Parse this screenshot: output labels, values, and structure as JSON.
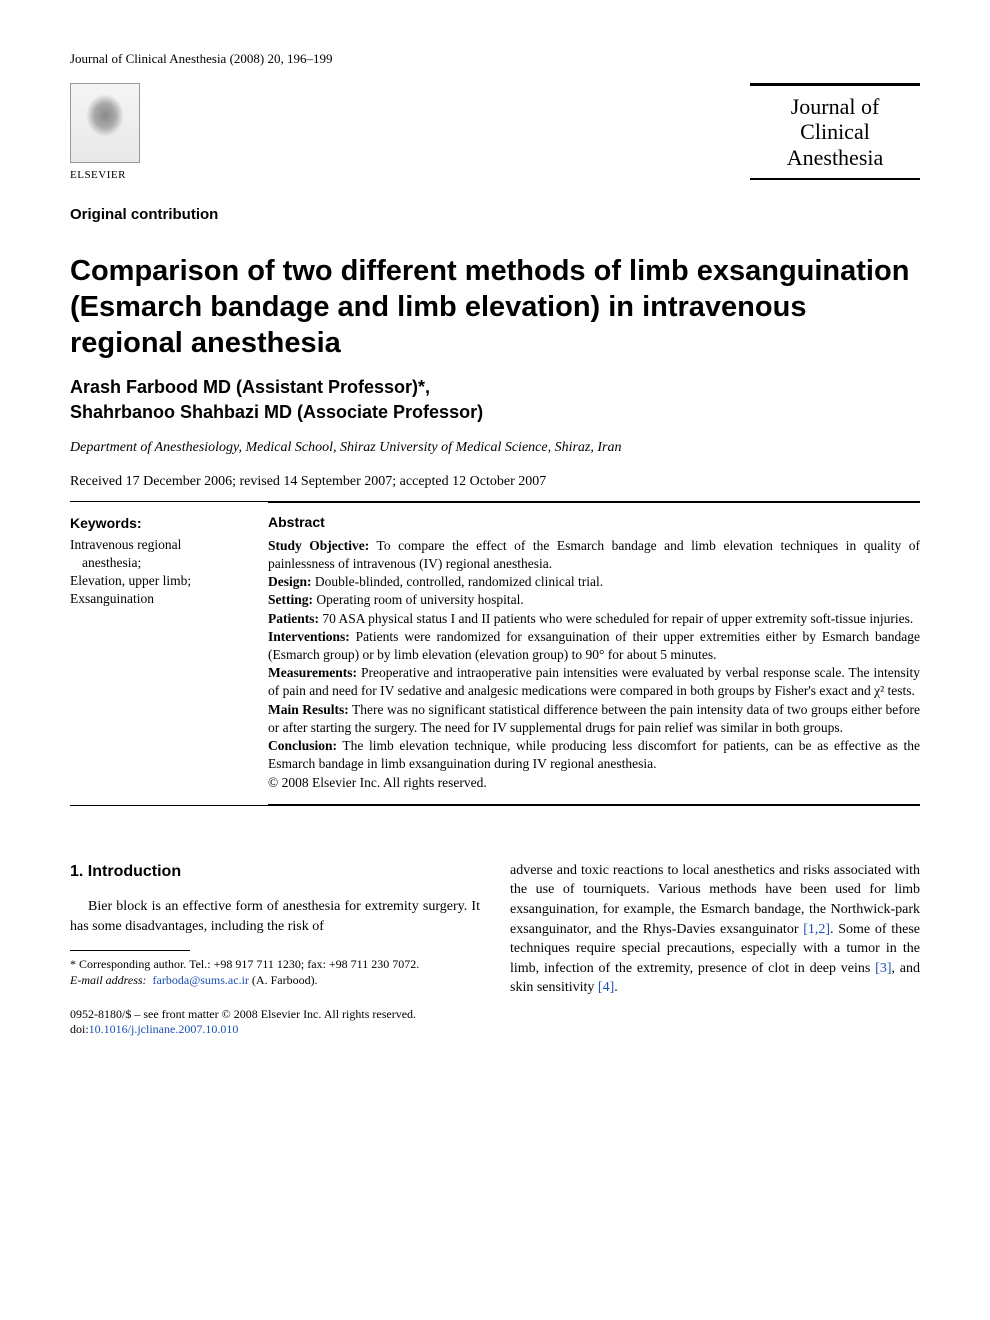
{
  "header": {
    "running_head": "Journal of Clinical Anesthesia (2008) 20, 196–199",
    "publisher": "ELSEVIER",
    "journal_box_line1": "Journal of",
    "journal_box_line2": "Clinical",
    "journal_box_line3": "Anesthesia"
  },
  "article": {
    "section_type": "Original contribution",
    "title": "Comparison of two different methods of limb exsanguination (Esmarch bandage and limb elevation) in intravenous regional anesthesia",
    "author1": "Arash Farbood MD (Assistant Professor)*,",
    "author2": "Shahrbanoo Shahbazi MD (Associate Professor)",
    "affiliation": "Department of Anesthesiology, Medical School, Shiraz University of Medical Science, Shiraz, Iran",
    "dates": "Received 17 December 2006; revised 14 September 2007; accepted 12 October 2007"
  },
  "keywords": {
    "title": "Keywords:",
    "items": [
      "Intravenous regional anesthesia;",
      "Elevation, upper limb;",
      "Exsanguination"
    ]
  },
  "abstract": {
    "title": "Abstract",
    "sections": [
      {
        "label": "Study Objective:",
        "text": " To compare the effect of the Esmarch bandage and limb elevation techniques in quality of painlessness of intravenous (IV) regional anesthesia."
      },
      {
        "label": "Design:",
        "text": " Double-blinded, controlled, randomized clinical trial."
      },
      {
        "label": "Setting:",
        "text": " Operating room of university hospital."
      },
      {
        "label": "Patients:",
        "text": " 70 ASA physical status I and II patients who were scheduled for repair of upper extremity soft-tissue injuries."
      },
      {
        "label": "Interventions:",
        "text": " Patients were randomized for exsanguination of their upper extremities either by Esmarch bandage (Esmarch group) or by limb elevation (elevation group) to 90° for about 5 minutes."
      },
      {
        "label": "Measurements:",
        "text": " Preoperative and intraoperative pain intensities were evaluated by verbal response scale. The intensity of pain and need for IV sedative and analgesic medications were compared in both groups by Fisher's exact and χ² tests."
      },
      {
        "label": "Main Results:",
        "text": " There was no significant statistical difference between the pain intensity data of two groups either before or after starting the surgery. The need for IV supplemental drugs for pain relief was similar in both groups."
      },
      {
        "label": "Conclusion:",
        "text": " The limb elevation technique, while producing less discomfort for patients, can be as effective as the Esmarch bandage in limb exsanguination during IV regional anesthesia."
      }
    ],
    "copyright": "© 2008 Elsevier Inc. All rights reserved."
  },
  "body": {
    "intro_heading": "1. Introduction",
    "intro_para_left": "Bier block is an effective form of anesthesia for extremity surgery. It has some disadvantages, including the risk of",
    "intro_para_right_1": "adverse and toxic reactions to local anesthetics and risks associated with the use of tourniquets. Various methods have been used for limb exsanguination, for example, the Esmarch bandage, the Northwick-park exsanguinator, and the Rhys-Davies exsanguinator ",
    "ref12": "[1,2]",
    "intro_para_right_2": ". Some of these techniques require special precautions, especially with a tumor in the limb, infection of the extremity, presence of clot in deep veins ",
    "ref3": "[3]",
    "intro_para_right_3": ", and skin sensitivity ",
    "ref4": "[4]",
    "intro_para_right_4": "."
  },
  "footnote": {
    "corresponding": "* Corresponding author. Tel.: +98 917 711 1230; fax: +98 711 230 7072.",
    "email_label": "E-mail address:",
    "email": "farboda@sums.ac.ir",
    "email_suffix": " (A. Farbood)."
  },
  "bottom": {
    "front_matter": "0952-8180/$ – see front matter © 2008 Elsevier Inc. All rights reserved.",
    "doi_label": "doi:",
    "doi": "10.1016/j.jclinane.2007.10.010"
  }
}
